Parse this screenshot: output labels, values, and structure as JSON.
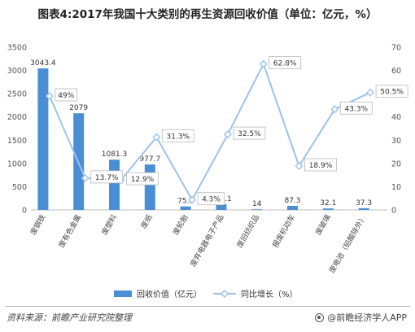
{
  "title": "图表4:2017年我国十大类别的再生资源回收价值（单位：亿元，%）",
  "footer": {
    "source": "资料来源：前瞻产业研究院整理",
    "brand": "@前瞻经济学人APP"
  },
  "chart_data": {
    "type": "bar",
    "title": "图表4:2017年我国十大类别的再生资源回收价值（单位：亿元，%）",
    "categories": [
      "废钢铁",
      "废有色金属",
      "废塑料",
      "废纸",
      "废轮胎",
      "废弃电器电子产品",
      "废旧纺织品",
      "报废机动车",
      "废玻璃",
      "废电池（铅酸除外）"
    ],
    "series": [
      {
        "name": "回收价值（亿元）",
        "type": "bar",
        "axis": "left",
        "values": [
          3043.4,
          2079,
          1081.3,
          977.7,
          75.5,
          125.1,
          14,
          87.3,
          32.1,
          37.3
        ],
        "labels": [
          "3043.4",
          "2079",
          "1081.3",
          "977.7",
          "75.5",
          "125.1",
          "14",
          "87.3",
          "32.1",
          "37.3"
        ],
        "color": "#4a8fd4"
      },
      {
        "name": "同比增长（%）",
        "type": "line",
        "axis": "right",
        "values": [
          49,
          13.7,
          12.9,
          31.3,
          4.3,
          32.5,
          62.8,
          18.9,
          43.3,
          50.5
        ],
        "labels": [
          "49%",
          "13.7%",
          "12.9%",
          "31.3%",
          "4.3%",
          "32.5%",
          "62.8%",
          "18.9%",
          "43.3%",
          "50.5%"
        ],
        "color": "#9cc3ea"
      }
    ],
    "yleft": {
      "min": 0,
      "max": 3500,
      "ticks": [
        0,
        500,
        1000,
        1500,
        2000,
        2500,
        3000,
        3500
      ]
    },
    "yright": {
      "min": 0,
      "max": 70,
      "ticks": [
        0,
        10,
        20,
        30,
        40,
        50,
        60,
        70
      ]
    },
    "grid": false,
    "legend": "bottom-center"
  }
}
